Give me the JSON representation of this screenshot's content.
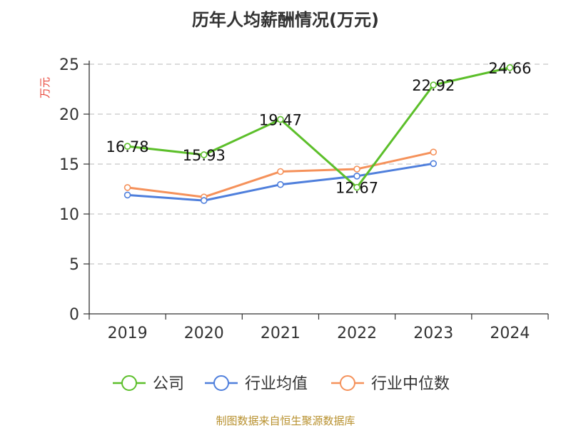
{
  "chart_data": {
    "type": "line",
    "title": "历年人均薪酬情况(万元)",
    "ylabel": "万元",
    "ylim": [
      0,
      25
    ],
    "yticks": [
      0,
      5,
      10,
      15,
      20,
      25
    ],
    "categories": [
      "2019",
      "2020",
      "2021",
      "2022",
      "2023",
      "2024"
    ],
    "grid": "horizontal-dashed",
    "legend_position": "bottom",
    "series": [
      {
        "name": "公司",
        "color": "#5cbf2a",
        "values": [
          16.78,
          15.93,
          19.47,
          12.67,
          22.92,
          24.66
        ],
        "labels": [
          "16.78",
          "15.93",
          "19.47",
          "12.67",
          "22.92",
          "24.66"
        ]
      },
      {
        "name": "行业均值",
        "color": "#4f7fdc",
        "values": [
          11.9,
          11.35,
          12.95,
          13.8,
          15.05,
          null
        ]
      },
      {
        "name": "行业中位数",
        "color": "#f5915a",
        "values": [
          12.65,
          11.7,
          14.25,
          14.5,
          16.2,
          null
        ]
      }
    ],
    "source": "制图数据来自恒生聚源数据库"
  }
}
